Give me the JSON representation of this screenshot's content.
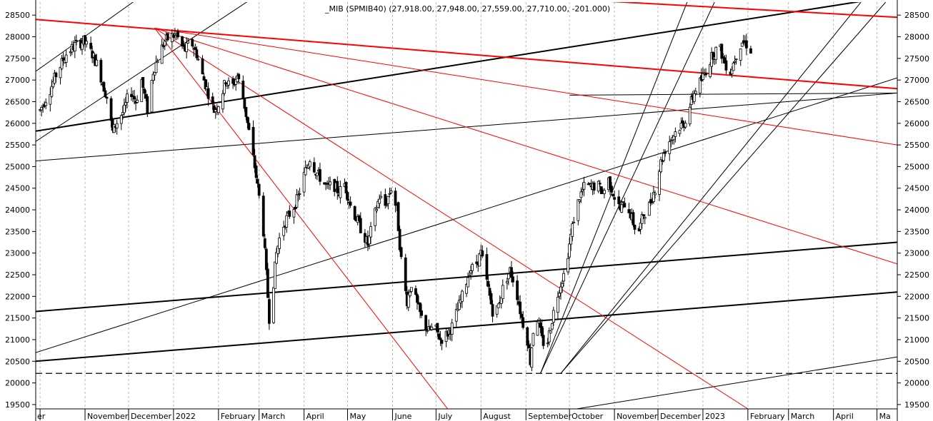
{
  "chart_data": {
    "type": "candlestick",
    "title": "_MIB (SPMIB40) (27,918.00, 27,948.00, 27,559.00, 27,710.00, -201.000)",
    "ylim": [
      19400,
      28800
    ],
    "yticks": [
      19500,
      20000,
      20500,
      21000,
      21500,
      22000,
      22500,
      23000,
      23500,
      24000,
      24500,
      25000,
      25500,
      26000,
      26500,
      27000,
      27500,
      28000,
      28500
    ],
    "x_axis_months": [
      "er",
      "November",
      "December",
      "2022",
      "February",
      "March",
      "April",
      "May",
      "June",
      "July",
      "August",
      "September",
      "October",
      "November",
      "December",
      "2023",
      "February",
      "March",
      "April",
      "Ma"
    ],
    "month_positions_days": [
      0,
      31,
      61,
      92,
      123,
      151,
      182,
      212,
      243,
      273,
      304,
      335,
      365,
      396,
      426,
      457,
      488,
      516,
      547,
      577
    ],
    "x_range_days": [
      -3,
      591
    ],
    "price_path": [
      [
        0,
        26300
      ],
      [
        6,
        26700
      ],
      [
        12,
        27200
      ],
      [
        18,
        27600
      ],
      [
        24,
        27800
      ],
      [
        30,
        27900
      ],
      [
        36,
        27600
      ],
      [
        40,
        27300
      ],
      [
        46,
        26600
      ],
      [
        50,
        25800
      ],
      [
        54,
        26100
      ],
      [
        58,
        26300
      ],
      [
        62,
        26800
      ],
      [
        66,
        26500
      ],
      [
        70,
        27000
      ],
      [
        74,
        26300
      ],
      [
        78,
        27200
      ],
      [
        82,
        27600
      ],
      [
        86,
        27900
      ],
      [
        90,
        28000
      ],
      [
        94,
        28050
      ],
      [
        97,
        27800
      ],
      [
        100,
        27700
      ],
      [
        104,
        27900
      ],
      [
        108,
        27600
      ],
      [
        112,
        27100
      ],
      [
        116,
        26700
      ],
      [
        120,
        26300
      ],
      [
        124,
        26500
      ],
      [
        128,
        27000
      ],
      [
        132,
        26800
      ],
      [
        136,
        27100
      ],
      [
        140,
        26600
      ],
      [
        144,
        25800
      ],
      [
        148,
        25000
      ],
      [
        151,
        24300
      ],
      [
        154,
        23500
      ],
      [
        156,
        22500
      ],
      [
        158,
        21500
      ],
      [
        160,
        22000
      ],
      [
        163,
        23000
      ],
      [
        166,
        23500
      ],
      [
        170,
        23800
      ],
      [
        174,
        24000
      ],
      [
        178,
        24300
      ],
      [
        182,
        24800
      ],
      [
        186,
        25200
      ],
      [
        190,
        24900
      ],
      [
        194,
        24700
      ],
      [
        198,
        24500
      ],
      [
        202,
        24600
      ],
      [
        206,
        24400
      ],
      [
        210,
        24600
      ],
      [
        214,
        24100
      ],
      [
        218,
        23800
      ],
      [
        222,
        23500
      ],
      [
        226,
        23200
      ],
      [
        230,
        23800
      ],
      [
        234,
        24300
      ],
      [
        238,
        24100
      ],
      [
        242,
        24500
      ],
      [
        246,
        24000
      ],
      [
        248,
        23200
      ],
      [
        250,
        22500
      ],
      [
        253,
        21900
      ],
      [
        256,
        22300
      ],
      [
        260,
        21800
      ],
      [
        264,
        21400
      ],
      [
        268,
        21200
      ],
      [
        272,
        21300
      ],
      [
        276,
        21000
      ],
      [
        280,
        21100
      ],
      [
        284,
        21300
      ],
      [
        288,
        21700
      ],
      [
        292,
        22100
      ],
      [
        296,
        22600
      ],
      [
        300,
        22700
      ],
      [
        304,
        23000
      ],
      [
        307,
        22500
      ],
      [
        310,
        22000
      ],
      [
        313,
        21500
      ],
      [
        316,
        21800
      ],
      [
        320,
        22300
      ],
      [
        324,
        22600
      ],
      [
        328,
        22200
      ],
      [
        332,
        21500
      ],
      [
        336,
        21000
      ],
      [
        338,
        20500
      ],
      [
        340,
        21200
      ],
      [
        343,
        21500
      ],
      [
        346,
        21000
      ],
      [
        349,
        20800
      ],
      [
        352,
        21300
      ],
      [
        355,
        21800
      ],
      [
        358,
        22200
      ],
      [
        361,
        22500
      ],
      [
        364,
        23000
      ],
      [
        368,
        23800
      ],
      [
        372,
        24300
      ],
      [
        376,
        24600
      ],
      [
        380,
        24500
      ],
      [
        384,
        24600
      ],
      [
        388,
        24400
      ],
      [
        392,
        24700
      ],
      [
        396,
        24300
      ],
      [
        400,
        24000
      ],
      [
        404,
        24200
      ],
      [
        408,
        23800
      ],
      [
        412,
        23400
      ],
      [
        416,
        23900
      ],
      [
        420,
        24100
      ],
      [
        424,
        24500
      ],
      [
        428,
        25100
      ],
      [
        432,
        25500
      ],
      [
        436,
        25700
      ],
      [
        440,
        25900
      ],
      [
        444,
        26000
      ],
      [
        448,
        26400
      ],
      [
        452,
        26800
      ],
      [
        456,
        27000
      ],
      [
        460,
        27300
      ],
      [
        464,
        27600
      ],
      [
        468,
        27800
      ],
      [
        472,
        27400
      ],
      [
        476,
        27200
      ],
      [
        480,
        27600
      ],
      [
        484,
        27900
      ],
      [
        488,
        27800
      ],
      [
        490,
        27700
      ]
    ],
    "trend_lines": [
      {
        "color": "#000000",
        "width": 2,
        "points": [
          [
            -3,
            25820
          ],
          [
            591,
            28950
          ]
        ]
      },
      {
        "color": "#000000",
        "width": 2,
        "points": [
          [
            -3,
            21650
          ],
          [
            591,
            23250
          ]
        ]
      },
      {
        "color": "#000000",
        "width": 2,
        "points": [
          [
            -3,
            20500
          ],
          [
            591,
            22100
          ]
        ]
      },
      {
        "color": "#000000",
        "width": 1,
        "points": [
          [
            -3,
            25130
          ],
          [
            591,
            26700
          ]
        ]
      },
      {
        "color": "#000000",
        "width": 1,
        "points": [
          [
            -3,
            20700
          ],
          [
            591,
            27050
          ]
        ]
      },
      {
        "color": "#000000",
        "width": 1,
        "points": [
          [
            -3,
            25580
          ],
          [
            165,
            29300
          ]
        ]
      },
      {
        "color": "#000000",
        "width": 1,
        "points": [
          [
            -3,
            27200
          ],
          [
            85,
            29300
          ]
        ]
      },
      {
        "color": "#000000",
        "width": 1,
        "points": [
          [
            370,
            19400
          ],
          [
            591,
            20600
          ]
        ]
      },
      {
        "color": "#000000",
        "width": 1,
        "points": [
          [
            365,
            26650
          ],
          [
            591,
            26700
          ]
        ]
      },
      {
        "color": "#000000",
        "width": 1,
        "points": [
          [
            345,
            20220
          ],
          [
            452,
            29300
          ]
        ]
      },
      {
        "color": "#000000",
        "width": 1,
        "points": [
          [
            345,
            20220
          ],
          [
            472,
            29300
          ]
        ]
      },
      {
        "color": "#000000",
        "width": 1,
        "points": [
          [
            359,
            20220
          ],
          [
            578,
            29300
          ]
        ]
      },
      {
        "color": "#000000",
        "width": 1,
        "points": [
          [
            359,
            20220
          ],
          [
            583,
            28800
          ]
        ]
      },
      {
        "color": "#ff0000",
        "width": 2,
        "points": [
          [
            -3,
            28400
          ],
          [
            591,
            26800
          ]
        ]
      },
      {
        "color": "#ff0000",
        "width": 2,
        "points": [
          [
            -3,
            29550
          ],
          [
            591,
            28450
          ]
        ]
      },
      {
        "color": "#ff0000",
        "width": 1,
        "points": [
          [
            79,
            28200
          ],
          [
            281,
            19400
          ]
        ]
      },
      {
        "color": "#ff0000",
        "width": 1,
        "points": [
          [
            79,
            28200
          ],
          [
            488,
            19400
          ]
        ]
      },
      {
        "color": "#ff0000",
        "width": 1,
        "points": [
          [
            79,
            28200
          ],
          [
            591,
            22750
          ]
        ]
      },
      {
        "color": "#ff0000",
        "width": 1,
        "points": [
          [
            79,
            28200
          ],
          [
            591,
            25500
          ]
        ]
      }
    ],
    "horizontal_lines": [
      {
        "value": 20220,
        "style": "dashed",
        "color": "#000000"
      }
    ]
  }
}
